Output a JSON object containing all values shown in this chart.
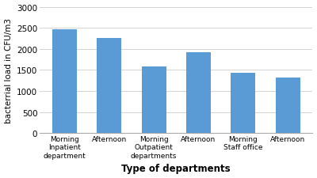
{
  "categories": [
    "Morning\nInpatient\ndepartment",
    "Afternoon",
    "Morning\nOutpatient\ndepartments",
    "Afternoon",
    "Morning\nStaff office",
    "Afternoon"
  ],
  "values": [
    2470,
    2250,
    1575,
    1930,
    1440,
    1320
  ],
  "bar_color": "#5B9BD5",
  "ylabel": "bacterrial load in CFU/m3",
  "xlabel": "Type of departments",
  "ylim": [
    0,
    3000
  ],
  "yticks": [
    0,
    500,
    1000,
    1500,
    2000,
    2500,
    3000
  ],
  "bar_width": 0.55,
  "xlabel_fontsize": 8.5,
  "ylabel_fontsize": 7.5,
  "xtick_fontsize": 6.5,
  "ytick_fontsize": 7.5,
  "xlabel_fontweight": "bold",
  "background_color": "#ffffff"
}
